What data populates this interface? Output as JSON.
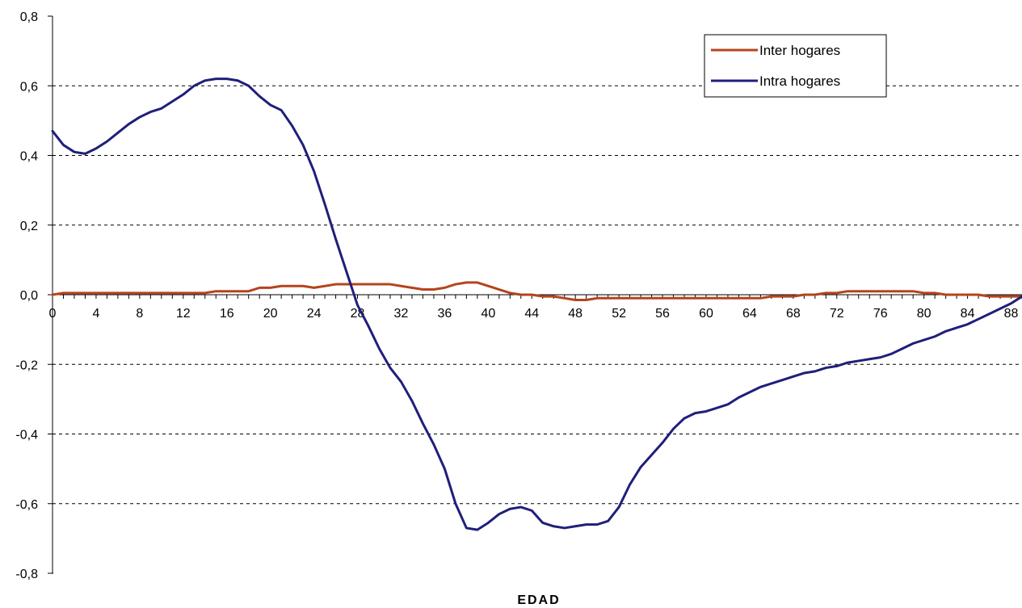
{
  "chart_data": {
    "type": "line",
    "title": "",
    "xlabel": "EDAD",
    "ylabel": "",
    "xlim": [
      0,
      89
    ],
    "ylim": [
      -0.8,
      0.8
    ],
    "y_ticks": [
      {
        "value": 0.8,
        "label": "0,8"
      },
      {
        "value": 0.6,
        "label": "0,6"
      },
      {
        "value": 0.4,
        "label": "0,4"
      },
      {
        "value": 0.2,
        "label": "0,2"
      },
      {
        "value": 0.0,
        "label": "0,0"
      },
      {
        "value": -0.2,
        "label": "-0,2"
      },
      {
        "value": -0.4,
        "label": "-0,4"
      },
      {
        "value": -0.6,
        "label": "-0,6"
      },
      {
        "value": -0.8,
        "label": "-0,8"
      }
    ],
    "x_ticks": [
      {
        "value": 0,
        "label": "0"
      },
      {
        "value": 4,
        "label": "4"
      },
      {
        "value": 8,
        "label": "8"
      },
      {
        "value": 12,
        "label": "12"
      },
      {
        "value": 16,
        "label": "16"
      },
      {
        "value": 20,
        "label": "20"
      },
      {
        "value": 24,
        "label": "24"
      },
      {
        "value": 28,
        "label": "28"
      },
      {
        "value": 32,
        "label": "32"
      },
      {
        "value": 36,
        "label": "36"
      },
      {
        "value": 40,
        "label": "40"
      },
      {
        "value": 44,
        "label": "44"
      },
      {
        "value": 48,
        "label": "48"
      },
      {
        "value": 52,
        "label": "52"
      },
      {
        "value": 56,
        "label": "56"
      },
      {
        "value": 60,
        "label": "60"
      },
      {
        "value": 64,
        "label": "64"
      },
      {
        "value": 68,
        "label": "68"
      },
      {
        "value": 72,
        "label": "72"
      },
      {
        "value": 76,
        "label": "76"
      },
      {
        "value": 80,
        "label": "80"
      },
      {
        "value": 84,
        "label": "84"
      },
      {
        "value": 88,
        "label": "88"
      }
    ],
    "grid": "horizontal-dashed",
    "legend_position": "top-right",
    "series": [
      {
        "name": "Inter hogares",
        "color": "#b5441c",
        "points": [
          [
            0,
            0.0
          ],
          [
            1,
            0.005
          ],
          [
            2,
            0.005
          ],
          [
            3,
            0.005
          ],
          [
            4,
            0.005
          ],
          [
            5,
            0.005
          ],
          [
            6,
            0.005
          ],
          [
            7,
            0.005
          ],
          [
            8,
            0.005
          ],
          [
            9,
            0.005
          ],
          [
            10,
            0.005
          ],
          [
            11,
            0.005
          ],
          [
            12,
            0.005
          ],
          [
            13,
            0.005
          ],
          [
            14,
            0.005
          ],
          [
            15,
            0.01
          ],
          [
            16,
            0.01
          ],
          [
            17,
            0.01
          ],
          [
            18,
            0.01
          ],
          [
            19,
            0.02
          ],
          [
            20,
            0.02
          ],
          [
            21,
            0.025
          ],
          [
            22,
            0.025
          ],
          [
            23,
            0.025
          ],
          [
            24,
            0.02
          ],
          [
            25,
            0.025
          ],
          [
            26,
            0.03
          ],
          [
            27,
            0.03
          ],
          [
            28,
            0.03
          ],
          [
            29,
            0.03
          ],
          [
            30,
            0.03
          ],
          [
            31,
            0.03
          ],
          [
            32,
            0.025
          ],
          [
            33,
            0.02
          ],
          [
            34,
            0.015
          ],
          [
            35,
            0.015
          ],
          [
            36,
            0.02
          ],
          [
            37,
            0.03
          ],
          [
            38,
            0.035
          ],
          [
            39,
            0.035
          ],
          [
            40,
            0.025
          ],
          [
            41,
            0.015
          ],
          [
            42,
            0.005
          ],
          [
            43,
            0.0
          ],
          [
            44,
            0.0
          ],
          [
            45,
            -0.005
          ],
          [
            46,
            -0.005
          ],
          [
            47,
            -0.01
          ],
          [
            48,
            -0.015
          ],
          [
            49,
            -0.015
          ],
          [
            50,
            -0.01
          ],
          [
            51,
            -0.01
          ],
          [
            52,
            -0.01
          ],
          [
            53,
            -0.01
          ],
          [
            54,
            -0.01
          ],
          [
            55,
            -0.01
          ],
          [
            56,
            -0.01
          ],
          [
            57,
            -0.01
          ],
          [
            58,
            -0.01
          ],
          [
            59,
            -0.01
          ],
          [
            60,
            -0.01
          ],
          [
            61,
            -0.01
          ],
          [
            62,
            -0.01
          ],
          [
            63,
            -0.01
          ],
          [
            64,
            -0.01
          ],
          [
            65,
            -0.01
          ],
          [
            66,
            -0.005
          ],
          [
            67,
            -0.005
          ],
          [
            68,
            -0.005
          ],
          [
            69,
            0.0
          ],
          [
            70,
            0.0
          ],
          [
            71,
            0.005
          ],
          [
            72,
            0.005
          ],
          [
            73,
            0.01
          ],
          [
            74,
            0.01
          ],
          [
            75,
            0.01
          ],
          [
            76,
            0.01
          ],
          [
            77,
            0.01
          ],
          [
            78,
            0.01
          ],
          [
            79,
            0.01
          ],
          [
            80,
            0.005
          ],
          [
            81,
            0.005
          ],
          [
            82,
            0.0
          ],
          [
            83,
            0.0
          ],
          [
            84,
            0.0
          ],
          [
            85,
            0.0
          ],
          [
            86,
            -0.005
          ],
          [
            87,
            -0.005
          ],
          [
            88,
            -0.005
          ],
          [
            89,
            -0.005
          ]
        ]
      },
      {
        "name": "Intra hogares",
        "color": "#1f1f7a",
        "points": [
          [
            0,
            0.47
          ],
          [
            1,
            0.43
          ],
          [
            2,
            0.41
          ],
          [
            3,
            0.405
          ],
          [
            4,
            0.42
          ],
          [
            5,
            0.44
          ],
          [
            6,
            0.465
          ],
          [
            7,
            0.49
          ],
          [
            8,
            0.51
          ],
          [
            9,
            0.525
          ],
          [
            10,
            0.535
          ],
          [
            11,
            0.555
          ],
          [
            12,
            0.575
          ],
          [
            13,
            0.6
          ],
          [
            14,
            0.615
          ],
          [
            15,
            0.62
          ],
          [
            16,
            0.62
          ],
          [
            17,
            0.615
          ],
          [
            18,
            0.6
          ],
          [
            19,
            0.57
          ],
          [
            20,
            0.545
          ],
          [
            21,
            0.53
          ],
          [
            22,
            0.485
          ],
          [
            23,
            0.43
          ],
          [
            24,
            0.355
          ],
          [
            25,
            0.26
          ],
          [
            26,
            0.16
          ],
          [
            27,
            0.065
          ],
          [
            28,
            -0.03
          ],
          [
            29,
            -0.09
          ],
          [
            30,
            -0.155
          ],
          [
            31,
            -0.21
          ],
          [
            32,
            -0.25
          ],
          [
            33,
            -0.305
          ],
          [
            34,
            -0.37
          ],
          [
            35,
            -0.43
          ],
          [
            36,
            -0.5
          ],
          [
            37,
            -0.6
          ],
          [
            38,
            -0.67
          ],
          [
            39,
            -0.675
          ],
          [
            40,
            -0.655
          ],
          [
            41,
            -0.63
          ],
          [
            42,
            -0.615
          ],
          [
            43,
            -0.61
          ],
          [
            44,
            -0.62
          ],
          [
            45,
            -0.655
          ],
          [
            46,
            -0.665
          ],
          [
            47,
            -0.67
          ],
          [
            48,
            -0.665
          ],
          [
            49,
            -0.66
          ],
          [
            50,
            -0.66
          ],
          [
            51,
            -0.65
          ],
          [
            52,
            -0.61
          ],
          [
            53,
            -0.545
          ],
          [
            54,
            -0.495
          ],
          [
            55,
            -0.46
          ],
          [
            56,
            -0.425
          ],
          [
            57,
            -0.385
          ],
          [
            58,
            -0.355
          ],
          [
            59,
            -0.34
          ],
          [
            60,
            -0.335
          ],
          [
            61,
            -0.325
          ],
          [
            62,
            -0.315
          ],
          [
            63,
            -0.295
          ],
          [
            64,
            -0.28
          ],
          [
            65,
            -0.265
          ],
          [
            66,
            -0.255
          ],
          [
            67,
            -0.245
          ],
          [
            68,
            -0.235
          ],
          [
            69,
            -0.225
          ],
          [
            70,
            -0.22
          ],
          [
            71,
            -0.21
          ],
          [
            72,
            -0.205
          ],
          [
            73,
            -0.195
          ],
          [
            74,
            -0.19
          ],
          [
            75,
            -0.185
          ],
          [
            76,
            -0.18
          ],
          [
            77,
            -0.17
          ],
          [
            78,
            -0.155
          ],
          [
            79,
            -0.14
          ],
          [
            80,
            -0.13
          ],
          [
            81,
            -0.12
          ],
          [
            82,
            -0.105
          ],
          [
            83,
            -0.095
          ],
          [
            84,
            -0.085
          ],
          [
            85,
            -0.07
          ],
          [
            86,
            -0.055
          ],
          [
            87,
            -0.04
          ],
          [
            88,
            -0.025
          ],
          [
            89,
            -0.005
          ]
        ]
      }
    ]
  }
}
